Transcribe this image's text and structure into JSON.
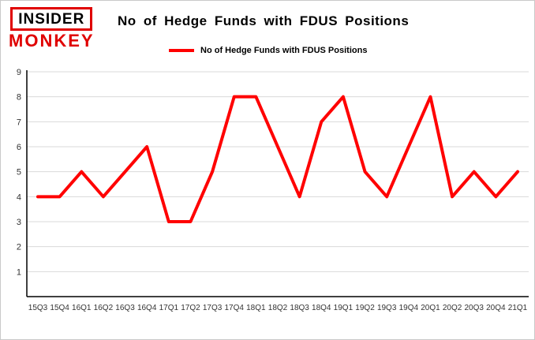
{
  "logo": {
    "line1": "INSIDER",
    "line2": "MONKEY"
  },
  "title": "No of Hedge Funds with FDUS Positions",
  "legend": {
    "label": "No of Hedge Funds with FDUS Positions",
    "color": "#ff0000"
  },
  "chart_data": {
    "type": "line",
    "title": "No of Hedge Funds with FDUS Positions",
    "categories": [
      "15Q3",
      "15Q4",
      "16Q1",
      "16Q2",
      "16Q3",
      "16Q4",
      "17Q1",
      "17Q2",
      "17Q3",
      "17Q4",
      "18Q1",
      "18Q2",
      "18Q3",
      "18Q4",
      "19Q1",
      "19Q2",
      "19Q3",
      "19Q4",
      "20Q1",
      "20Q2",
      "20Q3",
      "20Q4",
      "21Q1"
    ],
    "values": [
      4,
      4,
      5,
      4,
      5,
      6,
      3,
      3,
      5,
      8,
      8,
      6,
      4,
      7,
      8,
      5,
      4,
      6,
      8,
      4,
      5,
      4,
      5
    ],
    "xlabel": "",
    "ylabel": "",
    "ylim": [
      0,
      9
    ],
    "yticks": [
      1,
      2,
      3,
      4,
      5,
      6,
      7,
      8,
      9
    ],
    "grid": true,
    "grid_color": "#d9d9d9",
    "line_color": "#ff0000",
    "axis_color": "#000000",
    "tick_label_color": "#333333",
    "legend_position": "top"
  }
}
